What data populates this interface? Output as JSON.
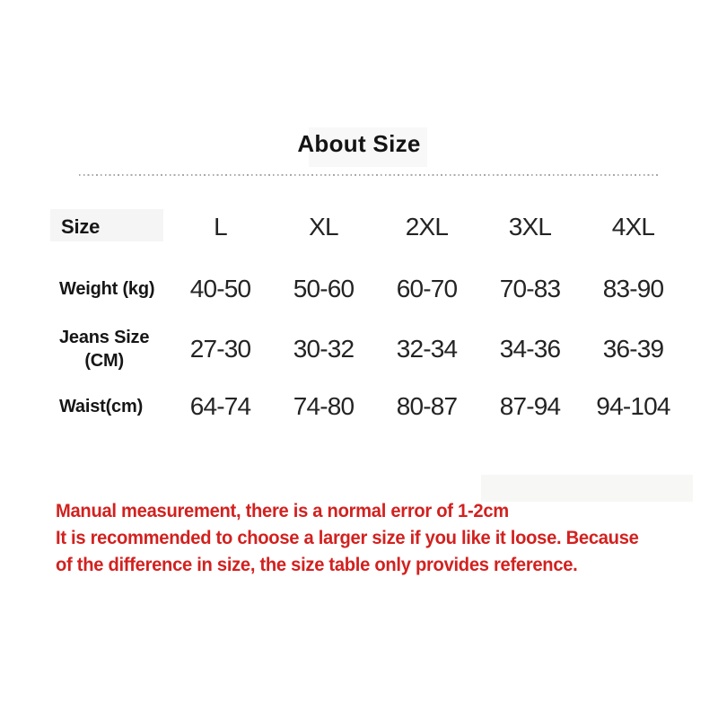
{
  "title": "About Size",
  "table": {
    "header": {
      "label": "Size",
      "columns": [
        "L",
        "XL",
        "2XL",
        "3XL",
        "4XL"
      ]
    },
    "rows": [
      {
        "label": "Weight (kg)",
        "values": [
          "40-50",
          "50-60",
          "60-70",
          "70-83",
          "83-90"
        ]
      },
      {
        "label": "Jeans Size",
        "label_line2": "(CM)",
        "values": [
          "27-30",
          "30-32",
          "32-34",
          "34-36",
          "36-39"
        ]
      },
      {
        "label": "Waist(cm)",
        "values": [
          "64-74",
          "74-80",
          "80-87",
          "87-94",
          "94-104"
        ]
      }
    ]
  },
  "note": {
    "lines": [
      "Manual measurement, there is a normal error of 1-2cm",
      "It is recommended to choose a larger size if you like it loose. Because",
      "of the difference in size, the size table only provides reference."
    ]
  },
  "colors": {
    "note_red": "#d2211f",
    "text": "#1e1e1e",
    "divider_gray": "#a9a9a9",
    "background": "#ffffff"
  }
}
